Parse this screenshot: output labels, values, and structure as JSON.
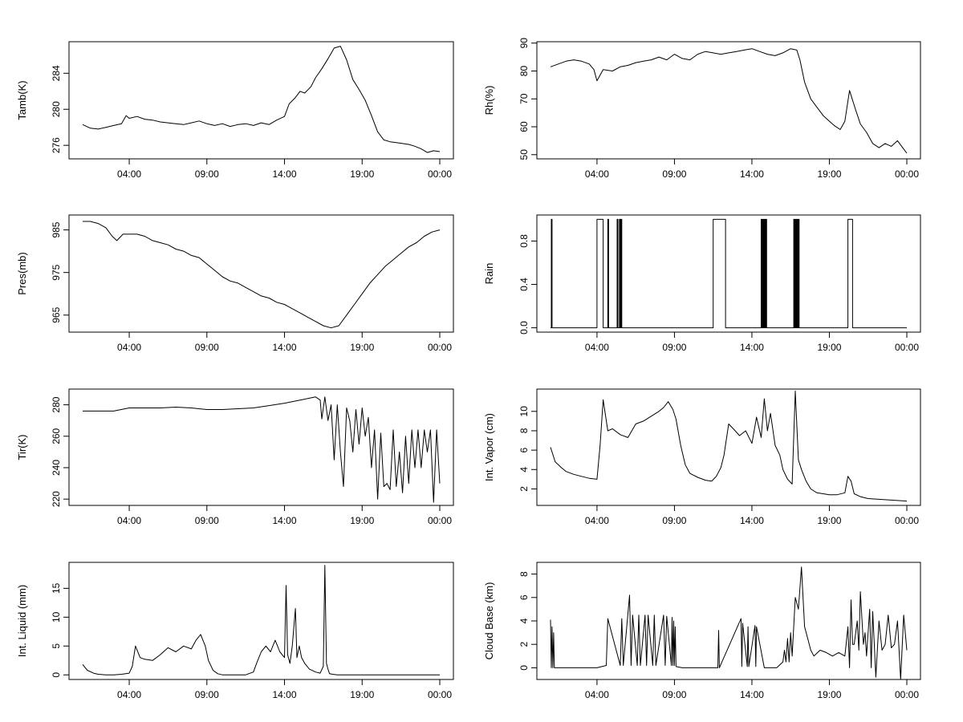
{
  "chart_data": [
    {
      "type": "line",
      "ylabel": "Tamb(K)",
      "xticks": [
        "04:00",
        "09:00",
        "14:00",
        "19:00",
        "00:00"
      ],
      "xtick_hours": [
        4,
        9,
        14,
        19,
        24
      ],
      "xlim": [
        0,
        25
      ],
      "yticks": [
        276,
        280,
        284
      ],
      "ylim": [
        274.5,
        287.5
      ],
      "x": [
        1,
        1.5,
        2,
        2.5,
        3,
        3.5,
        3.8,
        4,
        4.5,
        5,
        5.5,
        6,
        6.5,
        7,
        7.5,
        8,
        8.5,
        9,
        9.5,
        10,
        10.5,
        11,
        11.5,
        12,
        12.5,
        13,
        13.5,
        14,
        14.3,
        14.7,
        15,
        15.3,
        15.7,
        16,
        16.4,
        16.8,
        17.2,
        17.6,
        18,
        18.4,
        18.8,
        19.2,
        19.6,
        20,
        20.4,
        20.8,
        21.2,
        21.6,
        22,
        22.4,
        22.8,
        23.2,
        23.6,
        24
      ],
      "values": [
        278.3,
        277.9,
        277.8,
        278.0,
        278.2,
        278.4,
        279.3,
        279.0,
        279.2,
        278.9,
        278.8,
        278.6,
        278.5,
        278.4,
        278.3,
        278.5,
        278.7,
        278.4,
        278.2,
        278.4,
        278.1,
        278.3,
        278.4,
        278.2,
        278.5,
        278.3,
        278.8,
        279.2,
        280.6,
        281.3,
        282.0,
        281.8,
        282.5,
        283.5,
        284.5,
        285.6,
        286.8,
        287.0,
        285.5,
        283.3,
        282.2,
        281.0,
        279.3,
        277.5,
        276.6,
        276.4,
        276.3,
        276.2,
        276.1,
        275.9,
        275.6,
        275.2,
        275.4,
        275.3
      ]
    },
    {
      "type": "line",
      "ylabel": "Rh(%)",
      "xticks": [
        "04:00",
        "09:00",
        "14:00",
        "19:00",
        "00:00"
      ],
      "xtick_hours": [
        4,
        9,
        14,
        19,
        24
      ],
      "xlim": [
        0,
        25
      ],
      "yticks": [
        50,
        60,
        70,
        80,
        90
      ],
      "ylim": [
        48.5,
        90.5
      ],
      "x": [
        1,
        1.5,
        2,
        2.5,
        3,
        3.5,
        3.8,
        4,
        4.4,
        5,
        5.5,
        6,
        6.5,
        7,
        7.5,
        8,
        8.5,
        9,
        9.5,
        10,
        10.5,
        11,
        11.5,
        12,
        12.5,
        13,
        13.5,
        14,
        14.5,
        15,
        15.5,
        16,
        16.5,
        16.9,
        17.1,
        17.4,
        17.8,
        18.2,
        18.6,
        19,
        19.3,
        19.7,
        20,
        20.3,
        20.7,
        21,
        21.4,
        21.8,
        22.2,
        22.6,
        23,
        23.4,
        23.8,
        24
      ],
      "values": [
        81.5,
        82.5,
        83.5,
        84.0,
        83.5,
        82.5,
        80.5,
        76.5,
        80.5,
        80.0,
        81.5,
        82.0,
        83.0,
        83.5,
        84.0,
        85.0,
        84.0,
        86.0,
        84.5,
        84.0,
        86.0,
        87.0,
        86.5,
        86.0,
        86.5,
        87.0,
        87.5,
        88.0,
        87.0,
        86.0,
        85.5,
        86.5,
        88.0,
        87.5,
        84.0,
        76.0,
        70.0,
        67.0,
        64.0,
        62.0,
        60.5,
        59.0,
        62.0,
        73.0,
        66.0,
        61.0,
        58.0,
        54.0,
        52.5,
        54.0,
        53.0,
        55.0,
        52.0,
        50.5
      ]
    },
    {
      "type": "line",
      "ylabel": "Pres(mb)",
      "xticks": [
        "04:00",
        "09:00",
        "14:00",
        "19:00",
        "00:00"
      ],
      "xtick_hours": [
        4,
        9,
        14,
        19,
        24
      ],
      "xlim": [
        0,
        25
      ],
      "yticks": [
        965,
        975,
        985
      ],
      "ylim": [
        961,
        988.5
      ],
      "x": [
        1,
        1.5,
        2,
        2.5,
        2.9,
        3.2,
        3.6,
        4,
        4.5,
        5,
        5.5,
        6,
        6.5,
        7,
        7.5,
        8,
        8.5,
        9,
        9.5,
        10,
        10.5,
        11,
        11.5,
        12,
        12.5,
        13,
        13.5,
        14,
        14.5,
        15,
        15.5,
        16,
        16.5,
        17,
        17.5,
        18,
        18.5,
        19,
        19.5,
        20,
        20.5,
        21,
        21.5,
        22,
        22.5,
        23,
        23.5,
        24
      ],
      "values": [
        987.0,
        987.0,
        986.5,
        985.5,
        983.5,
        982.5,
        984.0,
        984.0,
        984.0,
        983.5,
        982.5,
        982.0,
        981.5,
        980.5,
        980.0,
        979.0,
        978.5,
        977.0,
        975.5,
        974.0,
        973.0,
        972.5,
        971.5,
        970.5,
        969.5,
        969.0,
        968.0,
        967.5,
        966.5,
        965.5,
        964.5,
        963.5,
        962.5,
        962.0,
        962.5,
        965.0,
        967.5,
        970.0,
        972.5,
        974.5,
        976.5,
        978.0,
        979.5,
        981.0,
        982.0,
        983.5,
        984.5,
        985.0
      ]
    },
    {
      "type": "line",
      "ylabel": "Rain",
      "xticks": [
        "04:00",
        "09:00",
        "14:00",
        "19:00",
        "00:00"
      ],
      "xtick_hours": [
        4,
        9,
        14,
        19,
        24
      ],
      "xlim": [
        0,
        25
      ],
      "yticks": [
        "0.0",
        "0.4",
        "0.8"
      ],
      "ytick_values": [
        0,
        0.4,
        0.8
      ],
      "ylim": [
        -0.04,
        1.04
      ],
      "x": [
        1,
        1.05,
        1.05,
        1.1,
        1.1,
        4,
        4,
        4.4,
        4.4,
        4.7,
        4.7,
        4.75,
        4.75,
        5.3,
        5.3,
        5.35,
        5.35,
        5.45,
        5.45,
        5.5,
        5.5,
        5.55,
        5.55,
        5.6,
        5.6,
        11.5,
        11.5,
        12.3,
        12.3,
        14.6,
        14.6,
        14.65,
        14.65,
        14.7,
        14.7,
        14.75,
        14.75,
        14.8,
        14.8,
        14.85,
        14.85,
        14.9,
        14.9,
        14.95,
        14.95,
        16.7,
        16.7,
        16.75,
        16.75,
        16.8,
        16.8,
        16.85,
        16.85,
        16.9,
        16.9,
        16.95,
        16.95,
        17.0,
        17.0,
        17.05,
        17.05,
        20.2,
        20.2,
        20.5,
        20.5,
        24
      ],
      "values": [
        0,
        0,
        1,
        1,
        0,
        0,
        1,
        1,
        0,
        0,
        1,
        1,
        0,
        0,
        1,
        1,
        0,
        0,
        1,
        1,
        0,
        0,
        1,
        1,
        0,
        0,
        1,
        1,
        0,
        0,
        1,
        1,
        0,
        0,
        1,
        1,
        0,
        0,
        1,
        1,
        0,
        0,
        1,
        1,
        0,
        0,
        1,
        1,
        0,
        0,
        1,
        1,
        0,
        0,
        1,
        1,
        0,
        0,
        1,
        1,
        0,
        0,
        1,
        1,
        0,
        0
      ]
    },
    {
      "type": "line",
      "ylabel": "Tir(K)",
      "xticks": [
        "04:00",
        "09:00",
        "14:00",
        "19:00",
        "00:00"
      ],
      "xtick_hours": [
        4,
        9,
        14,
        19,
        24
      ],
      "xlim": [
        0,
        25
      ],
      "yticks": [
        220,
        240,
        260,
        280
      ],
      "ylim": [
        216,
        290
      ],
      "x": [
        1,
        2,
        3,
        4,
        5,
        6,
        7,
        8,
        9,
        10,
        11,
        12,
        13,
        14,
        15,
        15.5,
        16,
        16.3,
        16.4,
        16.6,
        16.8,
        17,
        17.2,
        17.4,
        17.6,
        17.8,
        18,
        18.2,
        18.4,
        18.6,
        18.8,
        19,
        19.2,
        19.4,
        19.6,
        19.8,
        20,
        20.2,
        20.4,
        20.6,
        20.8,
        21,
        21.2,
        21.4,
        21.6,
        21.8,
        22,
        22.2,
        22.4,
        22.6,
        22.8,
        23,
        23.2,
        23.4,
        23.6,
        23.8,
        24
      ],
      "values": [
        276,
        276,
        276,
        278,
        278,
        278,
        278.5,
        278,
        277,
        277,
        277.5,
        278,
        279.5,
        281,
        283,
        284,
        285,
        283,
        271,
        285,
        270,
        280,
        245,
        280,
        250,
        228,
        278,
        270,
        250,
        277,
        255,
        278,
        260,
        272,
        240,
        264,
        220,
        262,
        228,
        230,
        226,
        264,
        228,
        250,
        224,
        260,
        230,
        264,
        240,
        264,
        240,
        264,
        250,
        264,
        218,
        264,
        230
      ]
    },
    {
      "type": "line",
      "ylabel": "Int. Vapor (cm)",
      "xticks": [
        "04:00",
        "09:00",
        "14:00",
        "19:00",
        "00:00"
      ],
      "xtick_hours": [
        4,
        9,
        14,
        19,
        24
      ],
      "xlim": [
        0,
        25
      ],
      "yticks": [
        2,
        4,
        6,
        8,
        10
      ],
      "ylim": [
        0.3,
        12.3
      ],
      "x": [
        1,
        1.3,
        1.7,
        2,
        2.5,
        3,
        3.5,
        4,
        4.2,
        4.4,
        4.7,
        5,
        5.5,
        6,
        6.5,
        7,
        7.5,
        8,
        8.3,
        8.6,
        8.9,
        9.1,
        9.4,
        9.7,
        10,
        10.5,
        11,
        11.4,
        11.7,
        12,
        12.2,
        12.5,
        12.8,
        13.2,
        13.6,
        14,
        14.3,
        14.6,
        14.8,
        15,
        15.2,
        15.5,
        15.8,
        16,
        16.3,
        16.6,
        16.8,
        17,
        17.2,
        17.5,
        17.8,
        18.2,
        18.6,
        19,
        19.5,
        20,
        20.2,
        20.4,
        20.6,
        21,
        21.5,
        22,
        22.5,
        23,
        23.5,
        24
      ],
      "values": [
        6.3,
        4.8,
        4.2,
        3.8,
        3.5,
        3.3,
        3.1,
        3.0,
        6.5,
        11.2,
        8.0,
        8.2,
        7.6,
        7.3,
        8.7,
        9.0,
        9.5,
        10.0,
        10.4,
        11.0,
        10.2,
        9.2,
        6.5,
        4.5,
        3.6,
        3.2,
        2.9,
        2.8,
        3.3,
        4.2,
        5.5,
        8.7,
        8.2,
        7.5,
        8.0,
        6.7,
        9.4,
        7.3,
        11.3,
        8.0,
        9.8,
        6.5,
        5.5,
        4.0,
        3.0,
        2.5,
        12.1,
        5.0,
        4.0,
        2.8,
        2.0,
        1.6,
        1.5,
        1.4,
        1.4,
        1.6,
        3.3,
        2.8,
        1.5,
        1.2,
        1.0,
        0.95,
        0.9,
        0.85,
        0.8,
        0.75
      ]
    },
    {
      "type": "line",
      "ylabel": "Int. Liquid (mm)",
      "xticks": [
        "04:00",
        "09:00",
        "14:00",
        "19:00",
        "00:00"
      ],
      "xtick_hours": [
        4,
        9,
        14,
        19,
        24
      ],
      "xlim": [
        0,
        25
      ],
      "yticks": [
        0,
        5,
        10,
        15
      ],
      "ylim": [
        -0.8,
        19.5
      ],
      "x": [
        1,
        1.3,
        1.7,
        2,
        2.5,
        3,
        3.5,
        4,
        4.2,
        4.4,
        4.7,
        5,
        5.5,
        6,
        6.5,
        7,
        7.5,
        8,
        8.3,
        8.6,
        8.9,
        9.1,
        9.4,
        9.7,
        10,
        10.5,
        11,
        11.5,
        12,
        12.2,
        12.5,
        12.8,
        13.1,
        13.4,
        13.7,
        14,
        14.1,
        14.2,
        14.35,
        14.5,
        14.7,
        14.8,
        14.95,
        15.1,
        15.3,
        15.6,
        16,
        16.3,
        16.5,
        16.6,
        16.7,
        16.8,
        16.9,
        17.1,
        17.4,
        17.8,
        18.5,
        19,
        20,
        21,
        22,
        23,
        24
      ],
      "values": [
        1.8,
        0.8,
        0.3,
        0.1,
        0.0,
        0.0,
        0.1,
        0.3,
        1.5,
        5.0,
        3.0,
        2.7,
        2.5,
        3.5,
        4.7,
        4.0,
        5.0,
        4.5,
        6.0,
        7.0,
        5.0,
        2.5,
        0.8,
        0.2,
        0.0,
        0.0,
        0.0,
        0.0,
        0.5,
        2.0,
        4.0,
        5.0,
        4.0,
        6.0,
        4.0,
        3.0,
        15.5,
        3.5,
        2.0,
        5.0,
        11.5,
        3.0,
        5.0,
        3.0,
        2.0,
        1.0,
        0.5,
        0.3,
        1.5,
        19.0,
        2.0,
        1.0,
        0.2,
        0.1,
        0.0,
        0.0,
        0.0,
        0.0,
        0.0,
        0.0,
        0.0,
        0.0,
        0.0
      ]
    },
    {
      "type": "line",
      "ylabel": "Cloud Base (km)",
      "xticks": [
        "04:00",
        "09:00",
        "14:00",
        "19:00",
        "00:00"
      ],
      "xtick_hours": [
        4,
        9,
        14,
        19,
        24
      ],
      "xlim": [
        0,
        25
      ],
      "yticks": [
        0,
        2,
        4,
        6,
        8
      ],
      "ylim": [
        -1.0,
        9.0
      ],
      "x": [
        1,
        1.05,
        1.1,
        1.15,
        1.2,
        1.25,
        1.3,
        4,
        4.6,
        4.7,
        5.5,
        5.6,
        5.7,
        6.1,
        6.2,
        6.3,
        6.6,
        6.7,
        6.8,
        7.1,
        7.2,
        7.3,
        7.6,
        7.7,
        7.8,
        8.3,
        8.4,
        8.5,
        8.8,
        8.85,
        8.9,
        8.95,
        9.0,
        9.05,
        9.1,
        9.5,
        11.8,
        11.85,
        11.9,
        13.3,
        13.35,
        13.4,
        13.7,
        13.75,
        13.8,
        14.2,
        14.25,
        14.3,
        14.8,
        14.85,
        14.9,
        15.6,
        16,
        16.1,
        16.2,
        16.3,
        16.4,
        16.5,
        16.6,
        16.8,
        17,
        17.2,
        17.4,
        17.6,
        17.8,
        18,
        18.4,
        18.8,
        19.2,
        19.6,
        20,
        20.2,
        20.3,
        20.4,
        20.5,
        20.6,
        20.8,
        20.9,
        21,
        21.2,
        21.3,
        21.4,
        21.6,
        21.7,
        21.8,
        22,
        22.2,
        22.4,
        22.6,
        22.8,
        23,
        23.2,
        23.4,
        23.6,
        23.8,
        24
      ],
      "values": [
        4.1,
        0.0,
        3.5,
        0.0,
        3.0,
        0.0,
        0.0,
        0.0,
        0.2,
        4.2,
        0.2,
        4.2,
        0.2,
        6.2,
        0.2,
        4.5,
        0.2,
        4.5,
        0.2,
        4.5,
        0.2,
        4.5,
        0.2,
        4.5,
        0.2,
        4.5,
        0.2,
        4.4,
        0.2,
        4.3,
        0.2,
        4.0,
        0.2,
        3.5,
        0.1,
        0.0,
        0.0,
        3.2,
        0.0,
        4.2,
        0.1,
        3.8,
        0.1,
        3.5,
        0.1,
        3.6,
        0.1,
        3.5,
        0.0,
        0.0,
        0.0,
        0.0,
        0.5,
        1.5,
        0.5,
        2.5,
        0.5,
        3.0,
        1.0,
        6.0,
        5.0,
        8.6,
        3.5,
        2.5,
        1.5,
        1.0,
        1.5,
        1.3,
        1.0,
        1.3,
        1.0,
        3.5,
        0.0,
        5.8,
        2.0,
        2.0,
        4.0,
        1.5,
        6.5,
        2.0,
        3.0,
        1.0,
        5.0,
        0.0,
        4.8,
        -0.8,
        4.0,
        1.5,
        2.0,
        4.5,
        1.7,
        2.0,
        4.0,
        -1.0,
        4.5,
        1.5
      ]
    }
  ]
}
